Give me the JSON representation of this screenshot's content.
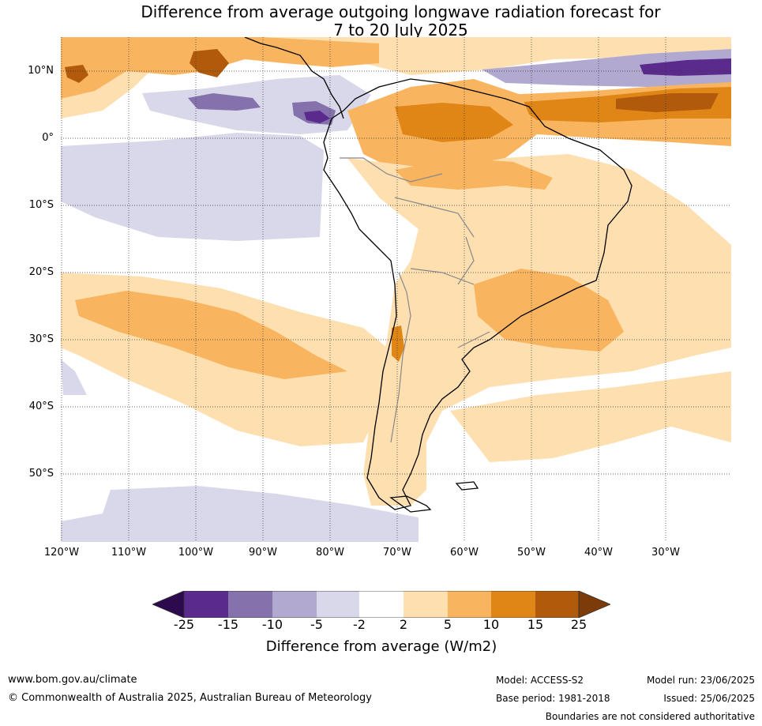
{
  "title_line1": "Difference from average outgoing longwave radiation forecast for",
  "title_line2": "7 to 20 July 2025",
  "map": {
    "lat_labels": [
      "10°N",
      "0°",
      "10°S",
      "20°S",
      "30°S",
      "40°S",
      "50°S"
    ],
    "lon_labels": [
      "120°W",
      "110°W",
      "100°W",
      "90°W",
      "80°W",
      "70°W",
      "60°W",
      "50°W",
      "40°W",
      "30°W"
    ],
    "gridlines": true
  },
  "colorbar": {
    "ticks": [
      "-25",
      "-15",
      "-10",
      "-5",
      "-2",
      "2",
      "5",
      "10",
      "15",
      "25"
    ],
    "colors": [
      "#2d0a4e",
      "#5a2a8c",
      "#8572ad",
      "#b1a9cf",
      "#d8d8ea",
      "#ffffff",
      "#fddfb0",
      "#f9b45f",
      "#e08616",
      "#b15a0c",
      "#7c3b09"
    ],
    "label": "Difference from average (W/m2)"
  },
  "footer": {
    "url": "www.bom.gov.au/climate",
    "copyright": "© Commonwealth of Australia 2025, Australian Bureau of Meteorology",
    "model": "Model: ACCESS-S2",
    "base_period": "Base period: 1981-2018",
    "model_run": "Model run: 23/06/2025",
    "issued": "Issued: 25/06/2025",
    "disclaimer": "Boundaries are not considered authoritative"
  }
}
